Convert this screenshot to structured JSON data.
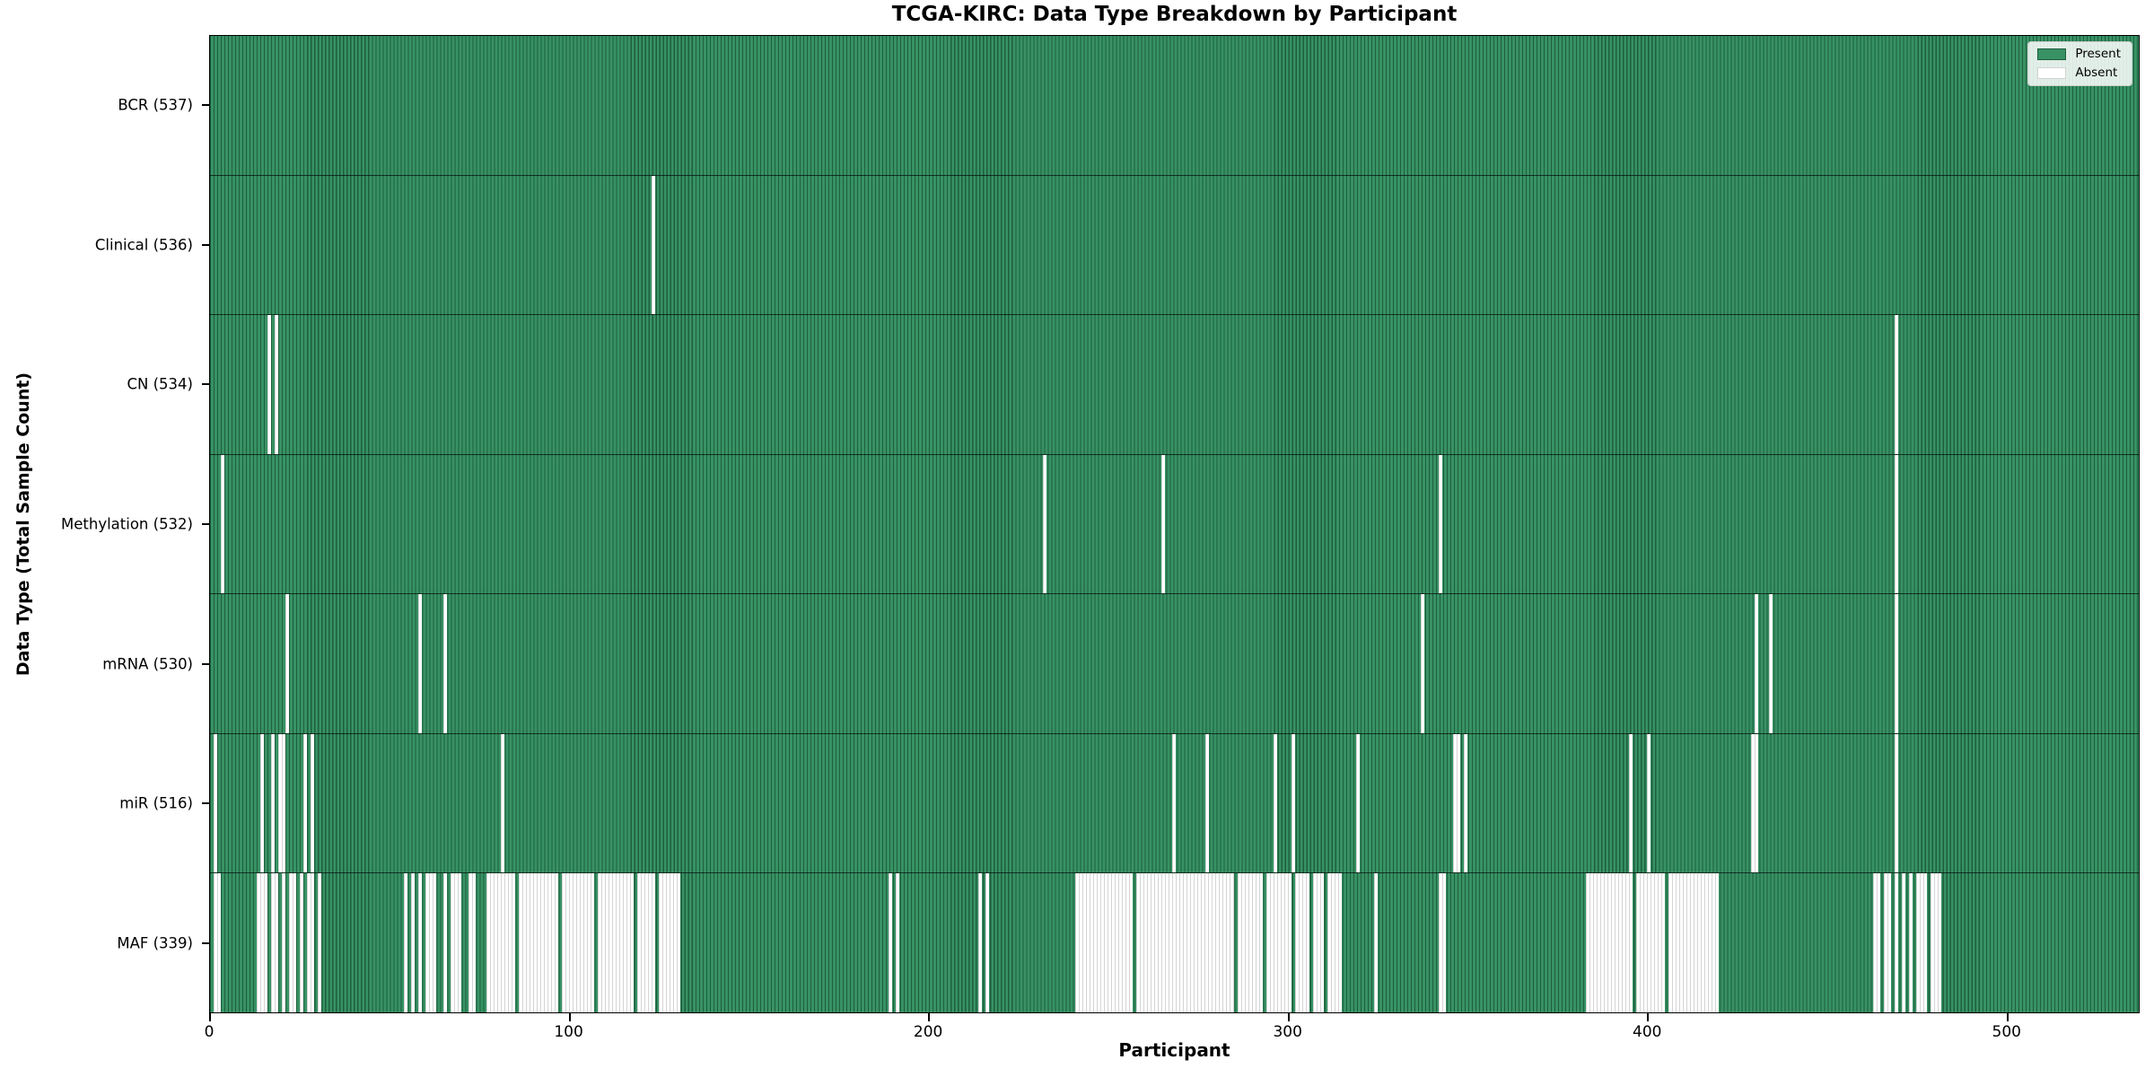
{
  "title": "TCGA-KIRC: Data Type Breakdown by Participant",
  "xlabel": "Participant",
  "ylabel": "Data Type (Total Sample Count)",
  "legend": {
    "present_label": "Present",
    "absent_label": "Absent"
  },
  "colors": {
    "present": "#389264",
    "present_edge": "#1d5f3e",
    "absent": "#ffffff",
    "absent_edge": "#d4d4d4",
    "plot_border": "#000000"
  },
  "chart_data": {
    "type": "heatmap",
    "title": "TCGA-KIRC: Data Type Breakdown by Participant",
    "xlabel": "Participant",
    "ylabel": "Data Type (Total Sample Count)",
    "legend_entries": [
      "Present",
      "Absent"
    ],
    "legend_position": "upper right",
    "n_participants": 537,
    "x_axis": {
      "ticks": [
        0,
        100,
        200,
        300,
        400,
        500
      ],
      "range": [
        0,
        537
      ]
    },
    "cell_values": {
      "present": 1,
      "absent": 0
    },
    "rows": [
      {
        "label": "BCR (537)",
        "name": "BCR",
        "present_count": 537,
        "absent_ranges": []
      },
      {
        "label": "Clinical (536)",
        "name": "Clinical",
        "present_count": 536,
        "absent_ranges": [
          [
            123,
            123
          ]
        ]
      },
      {
        "label": "CN (534)",
        "name": "CN",
        "present_count": 534,
        "absent_ranges": [
          [
            16,
            16
          ],
          [
            18,
            18
          ],
          [
            469,
            469
          ]
        ]
      },
      {
        "label": "Methylation (532)",
        "name": "Methylation",
        "present_count": 532,
        "absent_ranges": [
          [
            3,
            3
          ],
          [
            232,
            232
          ],
          [
            265,
            265
          ],
          [
            342,
            342
          ],
          [
            469,
            469
          ]
        ]
      },
      {
        "label": "mRNA (530)",
        "name": "mRNA",
        "present_count": 530,
        "absent_ranges": [
          [
            21,
            21
          ],
          [
            58,
            58
          ],
          [
            65,
            65
          ],
          [
            337,
            337
          ],
          [
            430,
            430
          ],
          [
            434,
            434
          ],
          [
            469,
            469
          ]
        ]
      },
      {
        "label": "miR (516)",
        "name": "miR",
        "present_count": 516,
        "absent_ranges": [
          [
            1,
            1
          ],
          [
            14,
            14
          ],
          [
            17,
            17
          ],
          [
            19,
            20
          ],
          [
            26,
            26
          ],
          [
            28,
            28
          ],
          [
            81,
            81
          ],
          [
            268,
            268
          ],
          [
            277,
            277
          ],
          [
            296,
            296
          ],
          [
            301,
            301
          ],
          [
            319,
            319
          ],
          [
            346,
            347
          ],
          [
            349,
            349
          ],
          [
            395,
            395
          ],
          [
            400,
            400
          ],
          [
            429,
            430
          ],
          [
            469,
            469
          ]
        ]
      },
      {
        "label": "MAF (339)",
        "name": "MAF",
        "present_count": 339,
        "absent_ranges": [
          [
            1,
            2
          ],
          [
            13,
            15
          ],
          [
            17,
            18
          ],
          [
            20,
            20
          ],
          [
            22,
            23
          ],
          [
            25,
            25
          ],
          [
            27,
            28
          ],
          [
            30,
            30
          ],
          [
            54,
            54
          ],
          [
            56,
            56
          ],
          [
            58,
            58
          ],
          [
            60,
            62
          ],
          [
            65,
            65
          ],
          [
            67,
            69
          ],
          [
            72,
            73
          ],
          [
            77,
            84
          ],
          [
            86,
            96
          ],
          [
            98,
            106
          ],
          [
            108,
            117
          ],
          [
            119,
            123
          ],
          [
            125,
            130
          ],
          [
            189,
            189
          ],
          [
            191,
            191
          ],
          [
            214,
            214
          ],
          [
            216,
            216
          ],
          [
            241,
            256
          ],
          [
            258,
            284
          ],
          [
            286,
            292
          ],
          [
            294,
            300
          ],
          [
            302,
            305
          ],
          [
            307,
            309
          ],
          [
            311,
            314
          ],
          [
            324,
            324
          ],
          [
            342,
            343
          ],
          [
            383,
            395
          ],
          [
            397,
            404
          ],
          [
            406,
            419
          ],
          [
            463,
            464
          ],
          [
            466,
            467
          ],
          [
            469,
            469
          ],
          [
            471,
            471
          ],
          [
            473,
            473
          ],
          [
            475,
            477
          ],
          [
            479,
            481
          ]
        ]
      }
    ]
  }
}
